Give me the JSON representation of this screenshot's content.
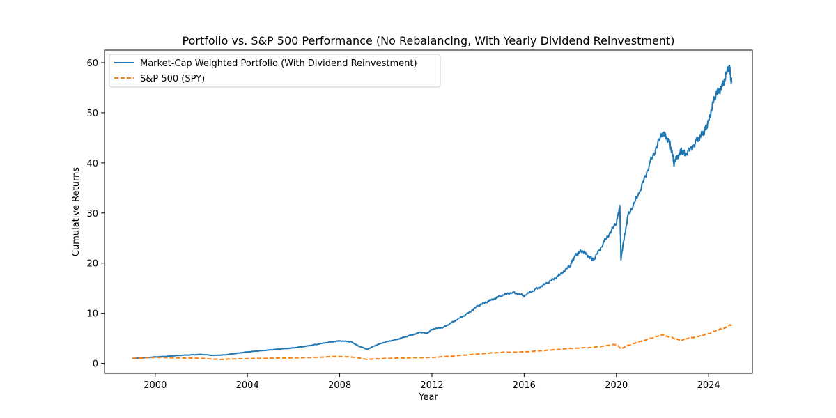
{
  "chart_data": {
    "type": "line",
    "title": "Portfolio vs. S&P 500 Performance (No Rebalancing, With Yearly Dividend Reinvestment)",
    "xlabel": "Year",
    "ylabel": "Cumulative Returns",
    "xlim": [
      1997.8,
      2025.9
    ],
    "ylim": [
      -2,
      62.5
    ],
    "xticks": [
      2000,
      2004,
      2008,
      2012,
      2016,
      2020,
      2024
    ],
    "xtick_labels": [
      "2000",
      "2004",
      "2008",
      "2012",
      "2016",
      "2020",
      "2024"
    ],
    "yticks": [
      0,
      10,
      20,
      30,
      40,
      50,
      60
    ],
    "ytick_labels": [
      "0",
      "10",
      "20",
      "30",
      "40",
      "50",
      "60"
    ],
    "grid": false,
    "legend_position": "top-left",
    "series": [
      {
        "name": "Market-Cap Weighted Portfolio (With Dividend Reinvestment)",
        "color": "#1f77b4",
        "style": "solid",
        "x": [
          1999.0,
          1999.5,
          2000.0,
          2000.5,
          2001.0,
          2001.5,
          2002.0,
          2002.5,
          2003.0,
          2003.5,
          2004.0,
          2004.5,
          2005.0,
          2005.5,
          2006.0,
          2006.5,
          2007.0,
          2007.5,
          2008.0,
          2008.5,
          2008.8,
          2009.2,
          2009.5,
          2010.0,
          2010.5,
          2011.0,
          2011.5,
          2011.8,
          2012.0,
          2012.5,
          2013.0,
          2013.5,
          2014.0,
          2014.5,
          2015.0,
          2015.5,
          2016.0,
          2016.5,
          2017.0,
          2017.5,
          2018.0,
          2018.2,
          2018.5,
          2018.9,
          2019.0,
          2019.5,
          2020.0,
          2020.15,
          2020.2,
          2020.5,
          2021.0,
          2021.5,
          2022.0,
          2022.3,
          2022.5,
          2022.8,
          2023.0,
          2023.5,
          2023.8,
          2024.0,
          2024.3,
          2024.6,
          2024.9,
          2025.0
        ],
        "y": [
          1.0,
          1.1,
          1.3,
          1.4,
          1.6,
          1.7,
          1.8,
          1.6,
          1.7,
          2.0,
          2.3,
          2.5,
          2.7,
          2.9,
          3.1,
          3.4,
          3.8,
          4.2,
          4.5,
          4.3,
          3.5,
          2.8,
          3.5,
          4.3,
          4.8,
          5.5,
          6.2,
          6.0,
          6.8,
          7.2,
          8.5,
          9.8,
          11.5,
          12.5,
          13.5,
          14.2,
          13.5,
          14.8,
          16.0,
          17.5,
          19.5,
          21.5,
          22.5,
          21.0,
          20.5,
          24.5,
          28.0,
          31.5,
          21.0,
          29.5,
          34.0,
          40.5,
          46.0,
          44.5,
          40.0,
          42.5,
          41.5,
          44.5,
          46.0,
          48.5,
          53.5,
          55.5,
          59.2,
          56.0
        ]
      },
      {
        "name": "S&P 500 (SPY)",
        "color": "#ff7f0e",
        "style": "dashed",
        "x": [
          1999.0,
          2000.0,
          2001.0,
          2002.0,
          2002.8,
          2003.5,
          2004.5,
          2006.0,
          2007.0,
          2007.8,
          2008.5,
          2009.2,
          2010.0,
          2011.0,
          2012.0,
          2013.0,
          2014.0,
          2015.0,
          2016.0,
          2017.0,
          2018.0,
          2019.0,
          2020.0,
          2020.2,
          2020.5,
          2021.0,
          2021.5,
          2022.0,
          2022.5,
          2022.8,
          2023.0,
          2023.5,
          2024.0,
          2024.5,
          2025.0
        ],
        "y": [
          1.0,
          1.2,
          1.1,
          1.0,
          0.8,
          0.9,
          1.0,
          1.1,
          1.2,
          1.4,
          1.3,
          0.8,
          1.0,
          1.1,
          1.2,
          1.5,
          1.9,
          2.2,
          2.3,
          2.6,
          3.0,
          3.2,
          3.8,
          2.9,
          3.6,
          4.3,
          5.0,
          5.7,
          5.0,
          4.6,
          4.9,
          5.3,
          5.9,
          6.8,
          7.7
        ]
      }
    ]
  }
}
